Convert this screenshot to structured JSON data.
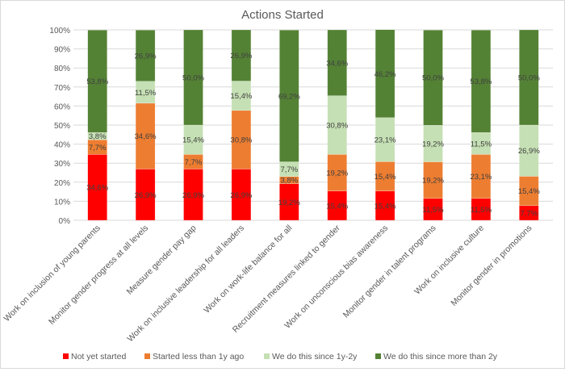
{
  "chart_data": {
    "type": "bar",
    "stacked": "percent",
    "title": "Actions Started",
    "categories": [
      "Work on inclusion of young parents",
      "Monitor gender progress at all levels",
      "Measure gender pay gap",
      "Work on inclusive leadership for all leaders",
      "Work on work-life balance for all",
      "Recruitment measures linked to gender",
      "Work on unconscious bias awareness",
      "Monitor gender in talent programs",
      "Work on inclusive culture",
      "Monitor gender in promotions"
    ],
    "series": [
      {
        "name": "Not yet started",
        "color": "#ff0000",
        "values": [
          34.6,
          26.9,
          26.9,
          26.9,
          19.2,
          15.4,
          15.4,
          11.5,
          11.5,
          7.7
        ]
      },
      {
        "name": "Started less than 1y ago",
        "color": "#ed7d31",
        "values": [
          7.7,
          34.6,
          7.7,
          30.8,
          3.8,
          19.2,
          15.4,
          19.2,
          23.1,
          15.4
        ]
      },
      {
        "name": "We do this since 1y-2y",
        "color": "#c5e0b4",
        "values": [
          3.8,
          11.5,
          15.4,
          15.4,
          7.7,
          30.8,
          23.1,
          19.2,
          11.5,
          26.9
        ]
      },
      {
        "name": "We do this since more than 2y",
        "color": "#548235",
        "values": [
          53.8,
          26.9,
          50.0,
          26.9,
          69.2,
          34.6,
          46.2,
          50.0,
          53.8,
          50.0
        ]
      }
    ],
    "ylim": [
      0,
      100
    ],
    "yticks": [
      "0%",
      "10%",
      "20%",
      "30%",
      "40%",
      "50%",
      "60%",
      "70%",
      "80%",
      "90%",
      "100%"
    ],
    "grid": true,
    "legend": "bottom",
    "data_labels": true
  }
}
